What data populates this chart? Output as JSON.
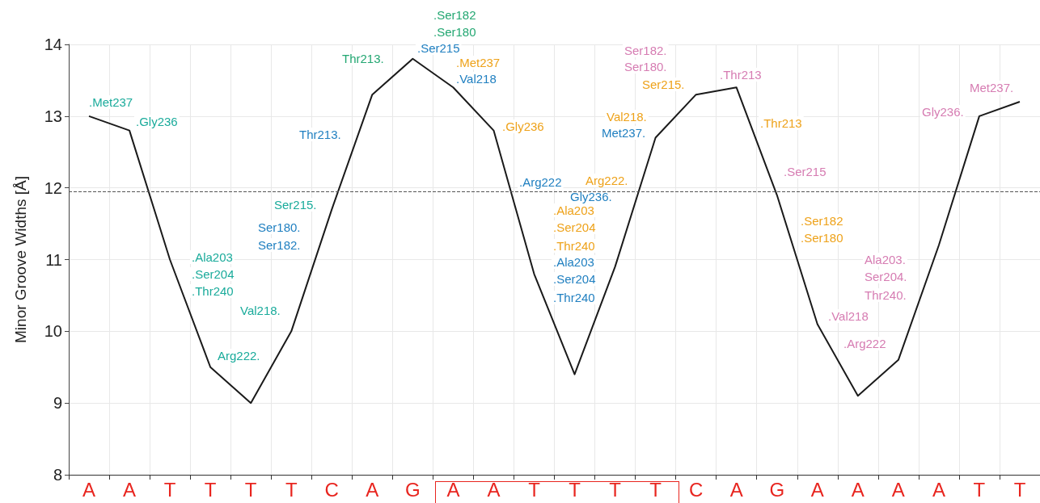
{
  "chart_data": {
    "type": "line",
    "ylabel": "Minor Groove Widths [Å]",
    "categories": [
      "A",
      "A",
      "T",
      "T",
      "T",
      "T",
      "C",
      "A",
      "G",
      "A",
      "A",
      "T",
      "T",
      "T",
      "T",
      "C",
      "A",
      "G",
      "A",
      "A",
      "A",
      "A",
      "T",
      "T"
    ],
    "values": [
      13.0,
      12.8,
      11.0,
      9.5,
      9.0,
      10.0,
      11.7,
      13.3,
      13.8,
      13.4,
      12.8,
      10.8,
      9.4,
      10.9,
      12.7,
      13.3,
      13.4,
      11.9,
      10.1,
      9.1,
      9.6,
      11.2,
      13.0,
      13.2
    ],
    "color": "#1a1a1a",
    "marker": "none",
    "ylim": [
      8,
      14
    ],
    "yticks": [
      8,
      9,
      10,
      11,
      12,
      13,
      14
    ],
    "grid": true,
    "ref_lines": [
      {
        "axis": "y",
        "value": 11.95,
        "line_style": "dashed",
        "color": "#555555"
      }
    ],
    "annotations": [
      ".Met237",
      ".Gly236",
      "Thr213.",
      "Thr213.",
      "Ser215.",
      "Ser180.",
      "Ser182.",
      ".Ala203",
      ".Ser204",
      ".Thr240",
      "Val218.",
      "Arg222.",
      ".Ser182",
      ".Ser180",
      ".Ser215",
      ".Met237",
      ".Val218",
      ".Gly236",
      ".Arg222",
      "Arg222.",
      "Gly236.",
      ".Ala203",
      ".Ser204",
      ".Thr240",
      ".Ala203",
      ".Ser204",
      ".Thr240",
      "Ser182.",
      "Ser180.",
      "Ser215.",
      "Val218.",
      "Met237.",
      ".Thr213",
      ".Thr213",
      ".Ser215",
      ".Ser182",
      ".Ser180",
      "Ala203.",
      "Ser204.",
      "Thr240.",
      ".Val218",
      ".Arg222",
      "Gly236.",
      "Met237."
    ]
  }
}
